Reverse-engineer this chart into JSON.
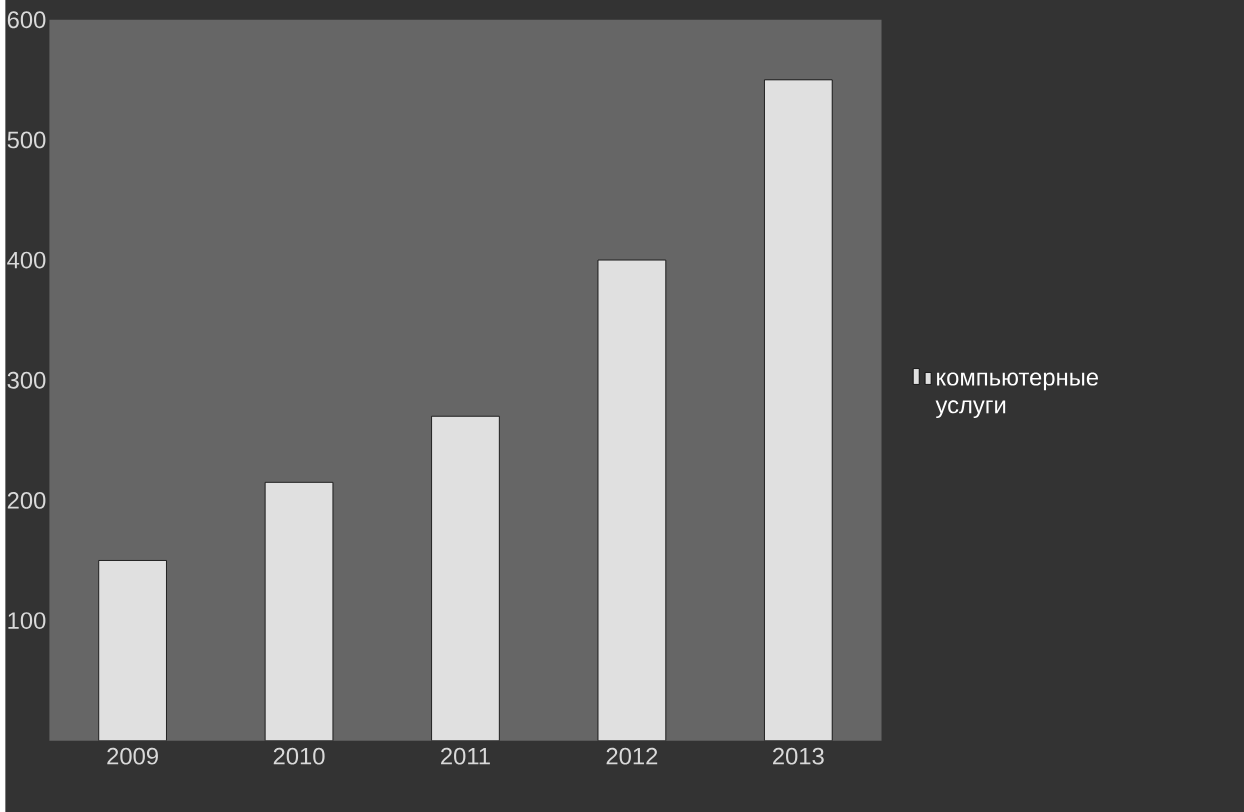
{
  "chart_data": {
    "type": "bar",
    "categories": [
      "2009",
      "2010",
      "2011",
      "2012",
      "2013"
    ],
    "series": [
      {
        "name": "компьютерные услуги",
        "color": "#e0e0e0",
        "values": [
          150,
          215,
          270,
          400,
          550
        ]
      }
    ],
    "ylim": [
      0,
      600
    ],
    "yticks": [
      100,
      200,
      300,
      400,
      500,
      600
    ],
    "legend": "right",
    "grid": false
  }
}
